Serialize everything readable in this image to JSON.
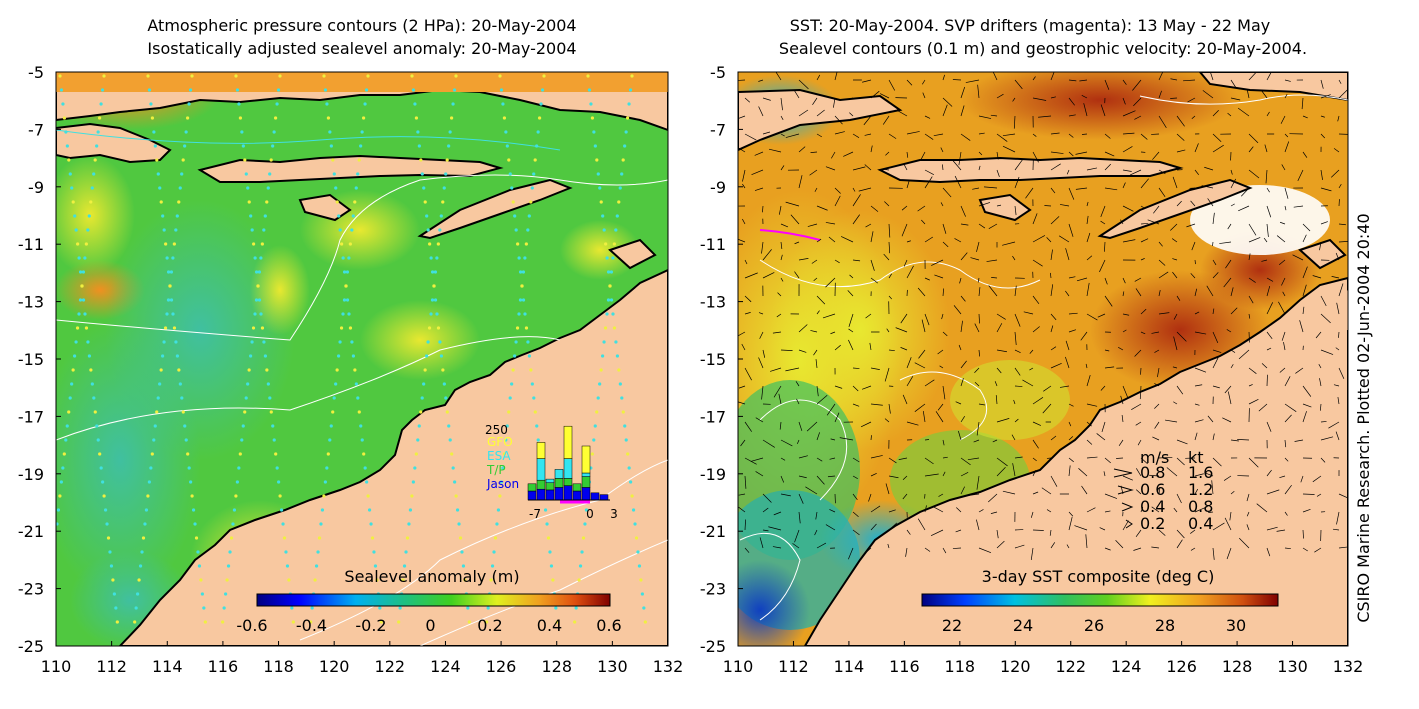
{
  "left_panel": {
    "title_line1": "Atmospheric pressure contours (2 HPa): 20-May-2004",
    "title_line2": "Isostatically adjusted sealevel anomaly: 20-May-2004",
    "colorbar_label": "Sealevel anomaly (m)",
    "colorbar_ticks": [
      "-0.6",
      "-0.4",
      "-0.2",
      "0",
      "0.2",
      "0.4",
      "0.6"
    ],
    "inset": {
      "ymax_label": "250",
      "legend": [
        {
          "name": "GFO",
          "color": "#ffff33"
        },
        {
          "name": "ESA",
          "color": "#33e5f0"
        },
        {
          "name": "T/P",
          "color": "#33cc33"
        },
        {
          "name": "Jason",
          "color": "#0000ee"
        }
      ],
      "x_ticks": [
        "-7",
        "0",
        "3"
      ],
      "bars": [
        {
          "jason": 25,
          "tp": 20,
          "esa": 0,
          "gfo": 0
        },
        {
          "jason": 30,
          "tp": 25,
          "esa": 60,
          "gfo": 45
        },
        {
          "jason": 28,
          "tp": 20,
          "esa": 10,
          "gfo": 0
        },
        {
          "jason": 35,
          "tp": 25,
          "esa": 25,
          "gfo": 0
        },
        {
          "jason": 40,
          "tp": 20,
          "esa": 55,
          "gfo": 90
        },
        {
          "jason": 25,
          "tp": 20,
          "esa": 0,
          "gfo": 0
        },
        {
          "jason": 35,
          "tp": 30,
          "esa": 10,
          "gfo": 75
        },
        {
          "jason": 20,
          "tp": 0,
          "esa": 0,
          "gfo": 0
        },
        {
          "jason": 15,
          "tp": 0,
          "esa": 0,
          "gfo": 0
        }
      ]
    }
  },
  "right_panel": {
    "title_line1": "SST: 20-May-2004. SVP drifters (magenta): 13 May - 22 May",
    "title_line2": "Sealevel contours (0.1 m) and geostrophic velocity: 20-May-2004.",
    "colorbar_label": "3-day SST composite (deg C)",
    "colorbar_ticks": [
      "22",
      "24",
      "26",
      "28",
      "30"
    ],
    "legend_header": [
      "m/s",
      "kt"
    ],
    "legend_rows": [
      {
        "ms": "0.8",
        "kt": "1.6"
      },
      {
        "ms": "0.6",
        "kt": "1.2"
      },
      {
        "ms": "0.4",
        "kt": "0.8"
      },
      {
        "ms": "0.2",
        "kt": "0.4"
      }
    ]
  },
  "axes": {
    "lat_ticks": [
      "-5",
      "-7",
      "-9",
      "-11",
      "-13",
      "-15",
      "-17",
      "-19",
      "-21",
      "-23",
      "-25"
    ],
    "lon_ticks": [
      "110",
      "112",
      "114",
      "116",
      "118",
      "120",
      "122",
      "124",
      "126",
      "128",
      "130",
      "132"
    ]
  },
  "credit": "CSIRO Marine Research. Plotted 02-Jun-2004 20:40",
  "colors": {
    "land": "#f8c8a0",
    "coast": "#000000",
    "sla_mid": "#33cc33",
    "sst_warm": "#e08020"
  }
}
